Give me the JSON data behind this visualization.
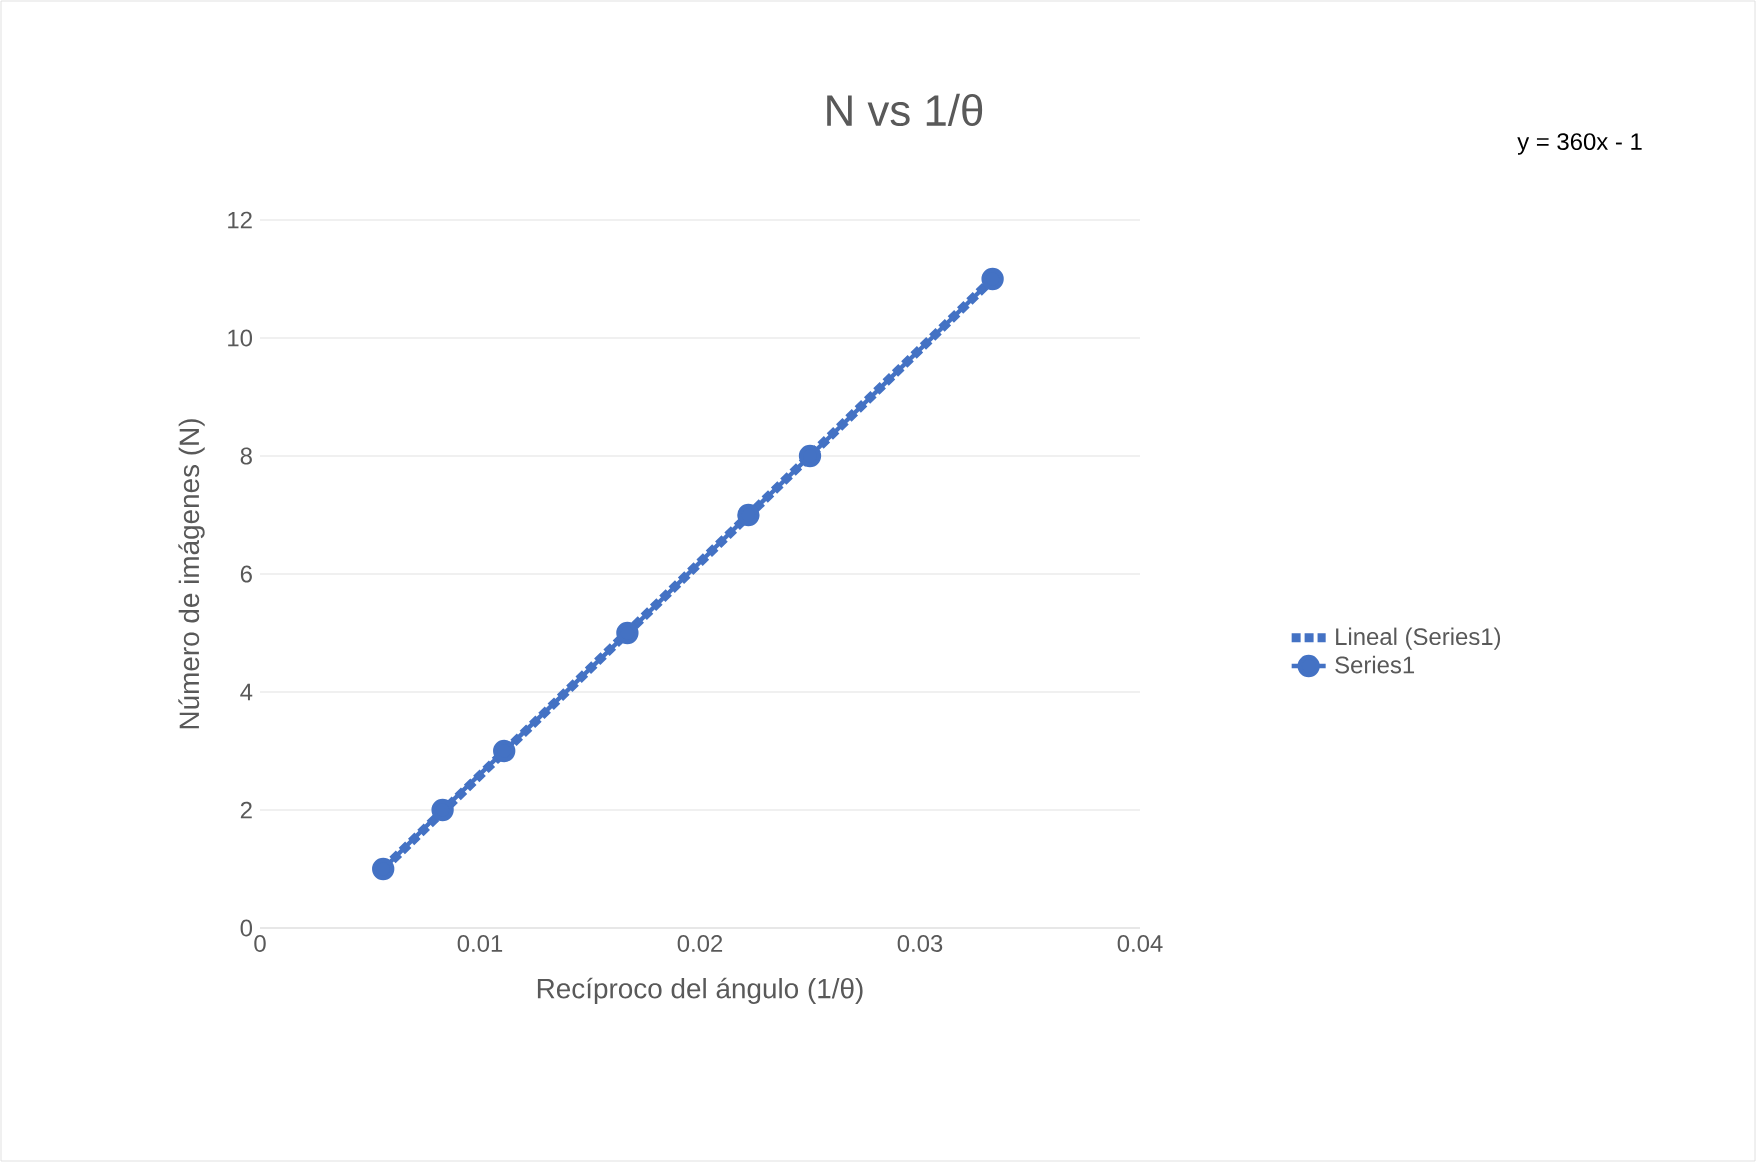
{
  "chart_data": {
    "type": "line",
    "title": "N vs 1/θ",
    "xlabel": "Recíproco del ángulo (1/θ)",
    "ylabel": "Número de imágenes (N)",
    "annotations": [
      "y = 360x - 1"
    ],
    "x": [
      0.0056,
      0.0083,
      0.0111,
      0.0167,
      0.0222,
      0.025,
      0.0333
    ],
    "series": [
      {
        "name": "Series1",
        "color": "#4472c4",
        "values": [
          1,
          2,
          3,
          5,
          7,
          8,
          11
        ],
        "marker": "circle",
        "line_style": "solid"
      },
      {
        "name": "Lineal (Series1)",
        "type": "line",
        "color": "#4472c4",
        "x": [
          0.0056,
          0.0333
        ],
        "values": [
          1,
          11
        ],
        "marker": "none",
        "line_style": "dotted"
      }
    ],
    "xlim": [
      0,
      0.04
    ],
    "xticks": [
      0,
      0.01,
      0.02,
      0.03,
      0.04
    ],
    "ylim": [
      0,
      12
    ],
    "yticks": [
      0,
      2,
      4,
      6,
      8,
      10,
      12
    ],
    "grid": "y",
    "legend": "right"
  }
}
